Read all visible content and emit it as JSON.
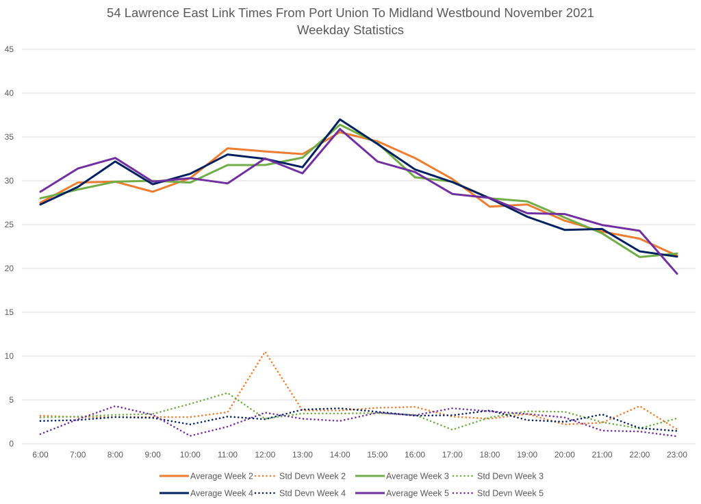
{
  "chart_data": {
    "type": "line",
    "title": "54 Lawrence East Link Times From Port Union To Midland Westbound November 2021",
    "subtitle": "Weekday Statistics",
    "xlabel": "",
    "ylabel": "",
    "ylim": [
      0,
      45
    ],
    "yticks": [
      "0",
      "5",
      "10",
      "15",
      "20",
      "25",
      "30",
      "35",
      "40",
      "45"
    ],
    "grid": true,
    "legend_position": "bottom",
    "categories": [
      "6:00",
      "7:00",
      "8:00",
      "9:00",
      "10:00",
      "11:00",
      "12:00",
      "13:00",
      "14:00",
      "15:00",
      "16:00",
      "17:00",
      "18:00",
      "19:00",
      "20:00",
      "21:00",
      "22:00",
      "23:00"
    ],
    "series": [
      {
        "name": "Average Week 2",
        "color": "#ED7D31",
        "style": "solid",
        "values": [
          27.5,
          29.8,
          29.9,
          28.75,
          30.3,
          33.7,
          33.35,
          33.05,
          35.55,
          34.5,
          32.6,
          30.2,
          27.05,
          27.3,
          25.45,
          24.2,
          23.4,
          21.45
        ]
      },
      {
        "name": "Std Devn Week 2",
        "color": "#ED7D31",
        "style": "dotted",
        "values": [
          3.2,
          3.05,
          3.05,
          3.05,
          3.05,
          3.6,
          10.5,
          3.8,
          3.8,
          4.1,
          4.2,
          3.1,
          2.85,
          3.4,
          2.2,
          2.4,
          4.3,
          1.65
        ]
      },
      {
        "name": "Average Week 3",
        "color": "#70AD47",
        "style": "solid",
        "values": [
          28.0,
          29.0,
          29.9,
          30.0,
          29.8,
          31.8,
          31.8,
          32.65,
          36.4,
          34.3,
          30.4,
          29.9,
          28.0,
          27.65,
          25.8,
          24.0,
          21.3,
          21.7
        ]
      },
      {
        "name": "Std Devn Week 3",
        "color": "#70AD47",
        "style": "dotted",
        "values": [
          3.0,
          3.1,
          3.3,
          3.4,
          4.55,
          5.8,
          2.85,
          3.45,
          3.45,
          3.5,
          3.3,
          1.6,
          3.0,
          3.7,
          3.65,
          2.45,
          1.75,
          2.9
        ]
      },
      {
        "name": "Average Week 4",
        "color": "#002060",
        "style": "solid",
        "values": [
          27.3,
          29.3,
          32.2,
          29.6,
          30.8,
          33.0,
          32.5,
          31.55,
          37.0,
          34.2,
          31.3,
          29.85,
          28.0,
          25.9,
          24.4,
          24.5,
          21.95,
          21.35
        ]
      },
      {
        "name": "Std Devn Week 4",
        "color": "#002060",
        "style": "dotted",
        "values": [
          2.6,
          2.7,
          3.05,
          2.95,
          2.2,
          3.1,
          2.8,
          3.9,
          4.05,
          3.65,
          3.2,
          3.25,
          3.8,
          2.7,
          2.5,
          3.35,
          1.8,
          1.45
        ]
      },
      {
        "name": "Average Week 5",
        "color": "#7030A0",
        "style": "solid",
        "values": [
          28.75,
          31.4,
          32.6,
          29.9,
          30.3,
          29.7,
          32.55,
          30.85,
          35.9,
          32.2,
          31.0,
          28.5,
          28.05,
          26.3,
          26.2,
          24.95,
          24.3,
          19.4
        ]
      },
      {
        "name": "Std Devn Week 5",
        "color": "#7030A0",
        "style": "dotted",
        "values": [
          1.1,
          2.8,
          4.3,
          3.3,
          0.9,
          1.95,
          3.55,
          2.85,
          2.6,
          3.55,
          3.25,
          4.05,
          3.7,
          3.4,
          3.0,
          1.5,
          1.4,
          0.85
        ]
      }
    ],
    "legend_order": [
      [
        "Average Week 2",
        "Std Devn Week 2",
        "Average Week 3",
        "Std Devn Week 3"
      ],
      [
        "Average Week 4",
        "Std Devn Week 4",
        "Average Week 5",
        "Std Devn Week 5"
      ]
    ],
    "gridline_color": "#D9D9D9",
    "text_color": "#595959"
  }
}
